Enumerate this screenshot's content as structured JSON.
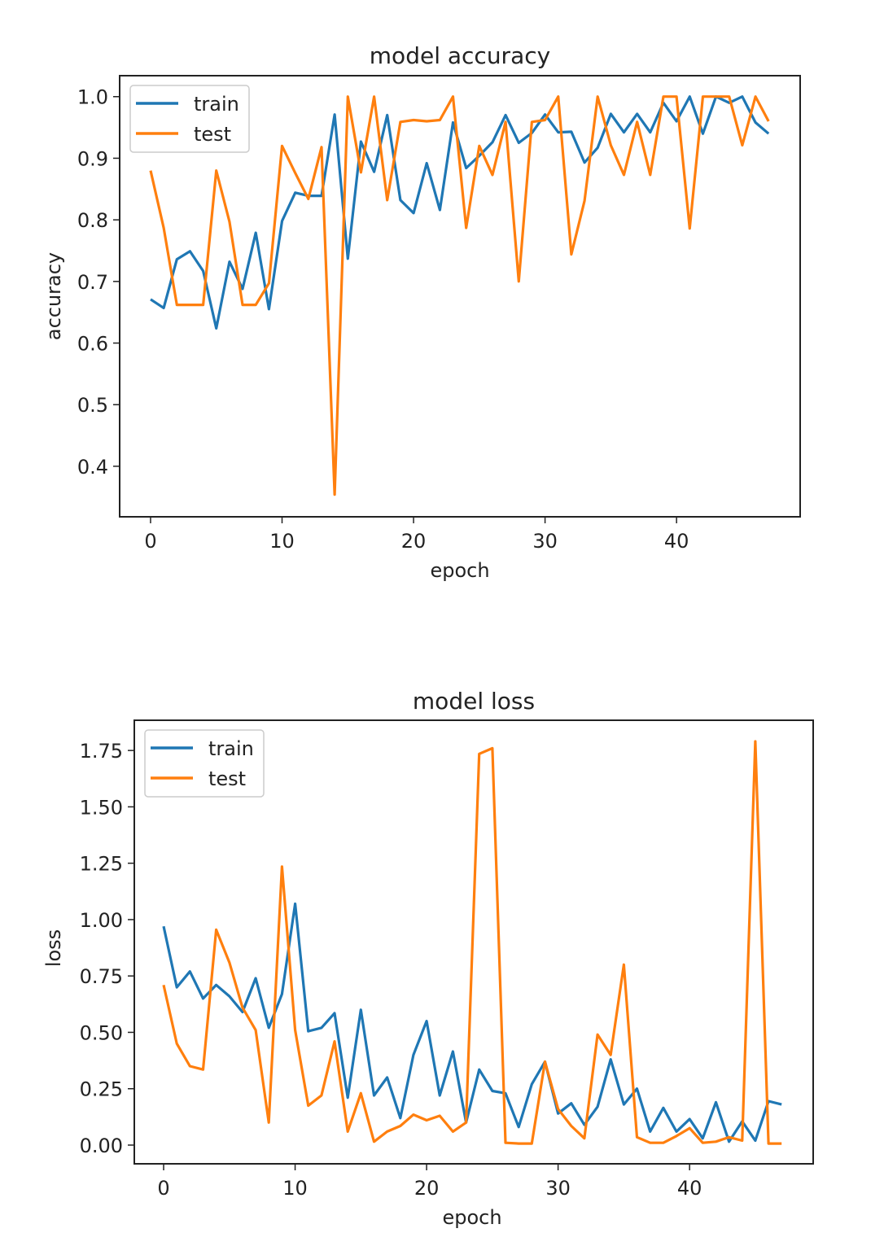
{
  "colors": {
    "train": "#1f77b4",
    "test": "#ff7f0e"
  },
  "chart_data": [
    {
      "type": "line",
      "title": "model accuracy",
      "xlabel": "epoch",
      "ylabel": "accuracy",
      "xlim": [
        -2.35,
        49.4
      ],
      "ylim": [
        0.318,
        1.034
      ],
      "xticks": [
        0,
        10,
        20,
        30,
        40
      ],
      "xtick_labels": [
        "0",
        "10",
        "20",
        "30",
        "40"
      ],
      "yticks": [
        0.4,
        0.5,
        0.6,
        0.7,
        0.8,
        0.9,
        1.0
      ],
      "ytick_labels": [
        "0.4",
        "0.5",
        "0.6",
        "0.7",
        "0.8",
        "0.9",
        "1.0"
      ],
      "grid": false,
      "legend": "top-left",
      "x": [
        0,
        1,
        2,
        3,
        4,
        5,
        6,
        7,
        8,
        9,
        10,
        11,
        12,
        13,
        14,
        15,
        16,
        17,
        18,
        19,
        20,
        21,
        22,
        23,
        24,
        25,
        26,
        27,
        28,
        29,
        30,
        31,
        32,
        33,
        34,
        35,
        36,
        37,
        38,
        39,
        40,
        41,
        42,
        43,
        44,
        45,
        46,
        47
      ],
      "series": [
        {
          "name": "train",
          "values": [
            0.671,
            0.657,
            0.736,
            0.749,
            0.717,
            0.624,
            0.732,
            0.688,
            0.779,
            0.655,
            0.798,
            0.844,
            0.839,
            0.839,
            0.971,
            0.737,
            0.927,
            0.878,
            0.97,
            0.832,
            0.811,
            0.892,
            0.816,
            0.958,
            0.884,
            0.904,
            0.926,
            0.97,
            0.925,
            0.941,
            0.971,
            0.942,
            0.943,
            0.893,
            0.917,
            0.972,
            0.942,
            0.972,
            0.942,
            0.99,
            0.96,
            1.0,
            0.94,
            1.0,
            0.99,
            1.0,
            0.958,
            0.94
          ]
        },
        {
          "name": "test",
          "values": [
            0.88,
            0.787,
            0.662,
            0.662,
            0.662,
            0.88,
            0.797,
            0.662,
            0.662,
            0.697,
            0.92,
            0.876,
            0.834,
            0.918,
            0.354,
            1.0,
            0.877,
            1.0,
            0.832,
            0.959,
            0.962,
            0.96,
            0.962,
            1.0,
            0.787,
            0.92,
            0.873,
            0.959,
            0.7,
            0.959,
            0.962,
            1.0,
            0.744,
            0.831,
            1.0,
            0.921,
            0.873,
            0.959,
            0.873,
            1.0,
            1.0,
            0.786,
            1.0,
            1.0,
            1.0,
            0.921,
            1.0,
            0.96
          ]
        }
      ]
    },
    {
      "type": "line",
      "title": "model loss",
      "xlabel": "epoch",
      "ylabel": "loss",
      "xlim": [
        -2.23,
        49.4
      ],
      "ylim": [
        -0.083,
        1.884
      ],
      "xticks": [
        0,
        10,
        20,
        30,
        40
      ],
      "xtick_labels": [
        "0",
        "10",
        "20",
        "30",
        "40"
      ],
      "yticks": [
        0,
        0.25,
        0.5,
        0.75,
        1.0,
        1.25,
        1.5,
        1.75
      ],
      "ytick_labels": [
        "0.00",
        "0.25",
        "0.50",
        "0.75",
        "1.00",
        "1.25",
        "1.50",
        "1.75"
      ],
      "grid": false,
      "legend": "top-left",
      "x": [
        0,
        1,
        2,
        3,
        4,
        5,
        6,
        7,
        8,
        9,
        10,
        11,
        12,
        13,
        14,
        15,
        16,
        17,
        18,
        19,
        20,
        21,
        22,
        23,
        24,
        25,
        26,
        27,
        28,
        29,
        30,
        31,
        32,
        33,
        34,
        35,
        36,
        37,
        38,
        39,
        40,
        41,
        42,
        43,
        44,
        45,
        46,
        47
      ],
      "series": [
        {
          "name": "train",
          "values": [
            0.97,
            0.7,
            0.77,
            0.65,
            0.71,
            0.66,
            0.59,
            0.74,
            0.52,
            0.67,
            1.07,
            0.505,
            0.52,
            0.585,
            0.21,
            0.6,
            0.22,
            0.3,
            0.12,
            0.4,
            0.55,
            0.22,
            0.415,
            0.1,
            0.335,
            0.24,
            0.23,
            0.08,
            0.27,
            0.37,
            0.14,
            0.185,
            0.09,
            0.17,
            0.38,
            0.18,
            0.25,
            0.06,
            0.165,
            0.06,
            0.115,
            0.03,
            0.19,
            0.015,
            0.105,
            0.02,
            0.195,
            0.18
          ]
        },
        {
          "name": "test",
          "values": [
            0.71,
            0.45,
            0.35,
            0.335,
            0.955,
            0.81,
            0.61,
            0.51,
            0.1,
            1.235,
            0.51,
            0.175,
            0.22,
            0.46,
            0.06,
            0.23,
            0.015,
            0.06,
            0.085,
            0.135,
            0.11,
            0.13,
            0.06,
            0.1,
            1.735,
            1.76,
            0.01,
            0.007,
            0.007,
            0.37,
            0.16,
            0.085,
            0.03,
            0.49,
            0.4,
            0.8,
            0.035,
            0.01,
            0.01,
            0.04,
            0.075,
            0.01,
            0.015,
            0.035,
            0.02,
            1.79,
            0.007,
            0.007
          ]
        }
      ]
    }
  ]
}
